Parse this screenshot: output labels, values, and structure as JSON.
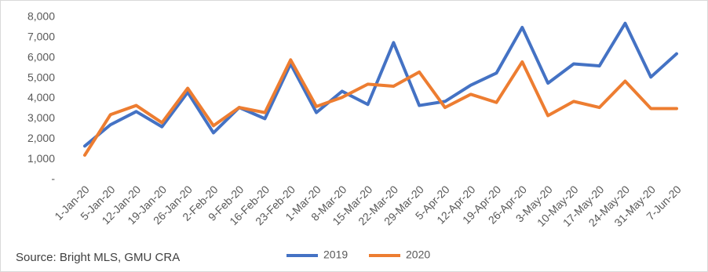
{
  "chart_data": {
    "type": "line",
    "source": "Source: Bright MLS, GMU CRA",
    "categories": [
      "1-Jan-20",
      "5-Jan-20",
      "12-Jan-20",
      "19-Jan-20",
      "26-Jan-20",
      "2-Feb-20",
      "9-Feb-20",
      "16-Feb-20",
      "23-Feb-20",
      "1-Mar-20",
      "8-Mar-20",
      "15-Mar-20",
      "22-Mar-20",
      "29-Mar-20",
      "5-Apr-20",
      "12-Apr-20",
      "19-Apr-20",
      "26-Apr-20",
      "3-May-20",
      "10-May-20",
      "17-May-20",
      "24-May-20",
      "31-May-20",
      "7-Jun-20"
    ],
    "series": [
      {
        "name": "2019",
        "color": "#4472c4",
        "values": [
          1650,
          2700,
          3350,
          2600,
          4300,
          2300,
          3550,
          3000,
          5700,
          3300,
          4350,
          3700,
          6750,
          3650,
          3850,
          4650,
          5250,
          7500,
          4750,
          5700,
          5600,
          7700,
          5050,
          6200
        ]
      },
      {
        "name": "2020",
        "color": "#ed7d31",
        "values": [
          1200,
          3200,
          3650,
          2800,
          4500,
          2650,
          3550,
          3300,
          5900,
          3600,
          4050,
          4700,
          4600,
          5300,
          3550,
          4200,
          3800,
          5800,
          3150,
          3850,
          3550,
          4850,
          3500,
          3500
        ]
      }
    ],
    "ylim": [
      0,
      8000
    ],
    "yticks": [
      {
        "value": 0,
        "label": "-"
      },
      {
        "value": 1000,
        "label": "1,000"
      },
      {
        "value": 2000,
        "label": "2,000"
      },
      {
        "value": 3000,
        "label": "3,000"
      },
      {
        "value": 4000,
        "label": "4,000"
      },
      {
        "value": 5000,
        "label": "5,000"
      },
      {
        "value": 6000,
        "label": "6,000"
      },
      {
        "value": 7000,
        "label": "7,000"
      },
      {
        "value": 8000,
        "label": "8,000"
      }
    ],
    "grid": false,
    "legend": "bottom"
  }
}
